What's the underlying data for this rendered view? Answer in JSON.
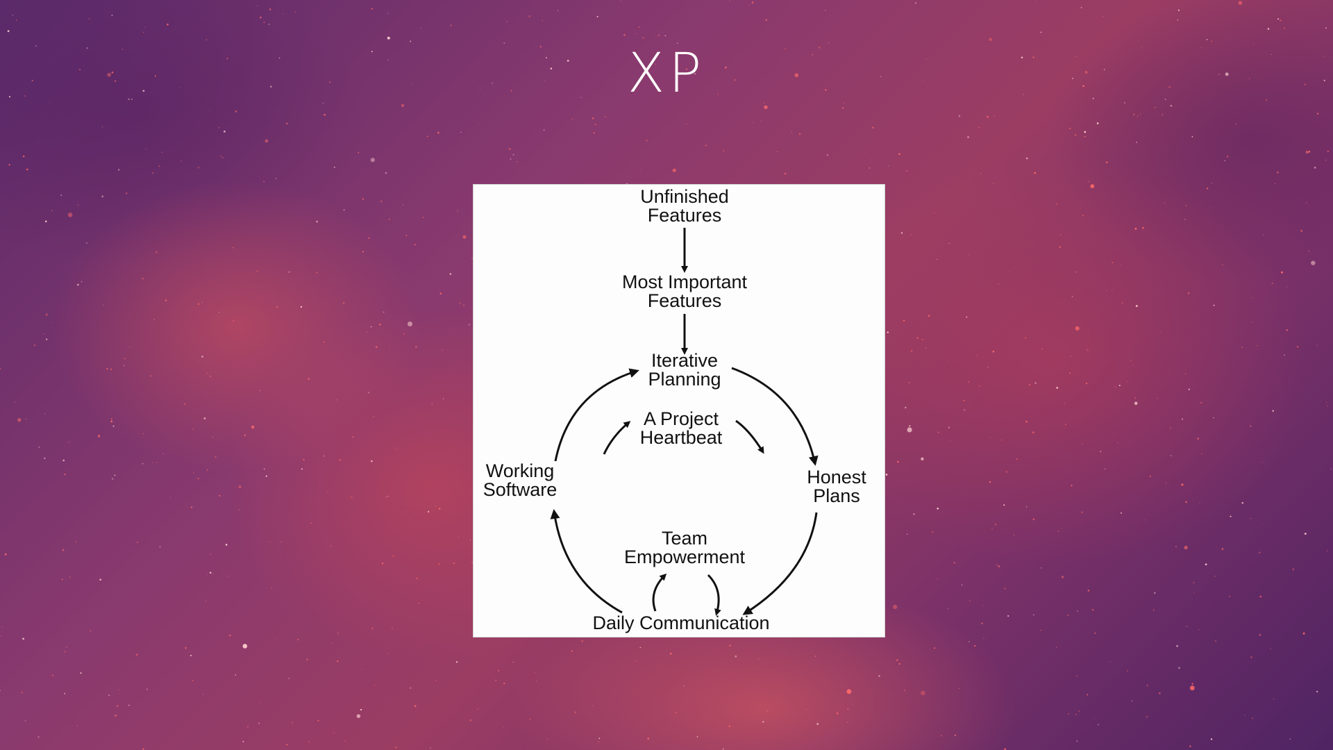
{
  "slide": {
    "title": "XP"
  },
  "diagram": {
    "nodes": {
      "unfinished": {
        "line1": "Unfinished",
        "line2": "Features"
      },
      "important": {
        "line1": "Most Important",
        "line2": "Features"
      },
      "planning": {
        "line1": "Iterative",
        "line2": "Planning"
      },
      "heartbeat": {
        "line1": "A Project",
        "line2": "Heartbeat"
      },
      "working": {
        "line1": "Working",
        "line2": "Software"
      },
      "honest": {
        "line1": "Honest",
        "line2": "Plans"
      },
      "team": {
        "line1": "Team",
        "line2": "Empowerment"
      },
      "daily": {
        "line1": "Daily Communication"
      }
    },
    "edges": [
      {
        "from": "Unfinished Features",
        "to": "Most Important Features"
      },
      {
        "from": "Most Important Features",
        "to": "Iterative Planning"
      },
      {
        "from": "Iterative Planning",
        "to": "Honest Plans"
      },
      {
        "from": "Honest Plans",
        "to": "Daily Communication"
      },
      {
        "from": "Daily Communication",
        "to": "Working Software"
      },
      {
        "from": "Working Software",
        "to": "Iterative Planning"
      }
    ]
  },
  "colors": {
    "text": "#111111",
    "card": "#fdfdfd",
    "title": "#ffffff"
  }
}
